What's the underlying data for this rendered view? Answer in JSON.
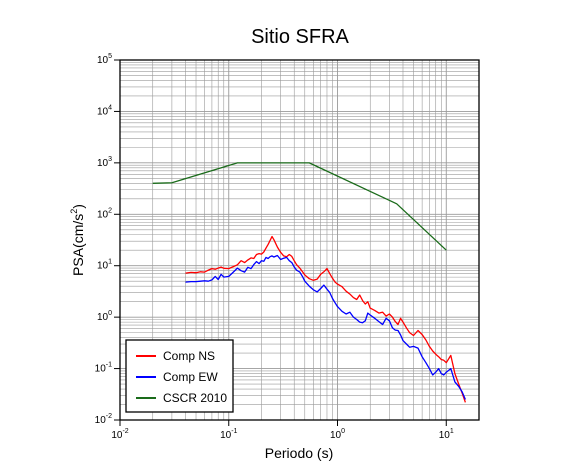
{
  "chart_data": {
    "type": "line",
    "title": "Sitio SFRA",
    "xlabel": "Periodo (s)",
    "ylabel": {
      "base": "PSA(cm/s",
      "sup": "2",
      "tail": ")"
    },
    "x_scale": "log",
    "y_scale": "log",
    "xlim": [
      0.01,
      20
    ],
    "ylim": [
      0.01,
      100000
    ],
    "grid": true,
    "legend_position": "bottom-left",
    "x_ticks": [
      {
        "base": "10",
        "exp": "-2",
        "value": 0.01
      },
      {
        "base": "10",
        "exp": "-1",
        "value": 0.1
      },
      {
        "base": "10",
        "exp": "0",
        "value": 1
      },
      {
        "base": "10",
        "exp": "1",
        "value": 10
      }
    ],
    "y_ticks": [
      {
        "base": "10",
        "exp": "-2",
        "value": 0.01
      },
      {
        "base": "10",
        "exp": "-1",
        "value": 0.1
      },
      {
        "base": "10",
        "exp": "0",
        "value": 1
      },
      {
        "base": "10",
        "exp": "1",
        "value": 10
      },
      {
        "base": "10",
        "exp": "2",
        "value": 100
      },
      {
        "base": "10",
        "exp": "3",
        "value": 1000
      },
      {
        "base": "10",
        "exp": "4",
        "value": 10000
      },
      {
        "base": "10",
        "exp": "5",
        "value": 100000
      }
    ],
    "series": [
      {
        "name": "Comp NS",
        "color": "#ff0000",
        "x": [
          0.04,
          0.045,
          0.05,
          0.055,
          0.06,
          0.065,
          0.07,
          0.075,
          0.08,
          0.085,
          0.09,
          0.1,
          0.11,
          0.12,
          0.13,
          0.14,
          0.15,
          0.16,
          0.17,
          0.18,
          0.19,
          0.2,
          0.21,
          0.22,
          0.23,
          0.24,
          0.25,
          0.26,
          0.28,
          0.3,
          0.32,
          0.34,
          0.36,
          0.38,
          0.4,
          0.42,
          0.45,
          0.48,
          0.5,
          0.55,
          0.6,
          0.65,
          0.7,
          0.75,
          0.8,
          0.85,
          0.9,
          0.95,
          1.0,
          1.1,
          1.2,
          1.3,
          1.4,
          1.5,
          1.6,
          1.7,
          1.8,
          1.9,
          2.0,
          2.2,
          2.4,
          2.6,
          2.8,
          3.0,
          3.2,
          3.4,
          3.6,
          3.8,
          4.0,
          4.3,
          4.6,
          5.0,
          5.5,
          6.0,
          6.5,
          7.0,
          7.5,
          8.0,
          8.5,
          9.0,
          9.5,
          10,
          11,
          12,
          13,
          14,
          15
        ],
        "y": [
          7.2,
          7.4,
          7.3,
          7.6,
          7.5,
          8.2,
          8.8,
          8.5,
          9.0,
          9.4,
          8.9,
          8.8,
          9.6,
          10.4,
          12.5,
          11.5,
          13.0,
          14.2,
          13.8,
          16.5,
          17.2,
          16.8,
          18.5,
          22,
          26,
          31,
          37,
          32,
          23,
          18.2,
          15.5,
          15.0,
          16.5,
          15.2,
          12.5,
          10.5,
          9.0,
          7.5,
          6.6,
          5.6,
          5.2,
          5.5,
          6.8,
          7.6,
          8.8,
          7.0,
          5.7,
          4.8,
          4.4,
          3.9,
          3.2,
          2.8,
          2.4,
          2.2,
          2.7,
          2.1,
          1.8,
          2.0,
          1.5,
          1.35,
          1.2,
          1.25,
          1.05,
          1.15,
          1.0,
          0.82,
          0.72,
          0.95,
          0.8,
          0.62,
          0.5,
          0.44,
          0.55,
          0.46,
          0.36,
          0.27,
          0.22,
          0.19,
          0.17,
          0.15,
          0.145,
          0.13,
          0.18,
          0.08,
          0.05,
          0.033,
          0.022
        ]
      },
      {
        "name": "Comp EW",
        "color": "#0000ff",
        "x": [
          0.04,
          0.045,
          0.05,
          0.055,
          0.06,
          0.065,
          0.07,
          0.075,
          0.08,
          0.085,
          0.09,
          0.1,
          0.11,
          0.12,
          0.13,
          0.14,
          0.15,
          0.16,
          0.17,
          0.18,
          0.19,
          0.2,
          0.21,
          0.22,
          0.23,
          0.24,
          0.25,
          0.26,
          0.28,
          0.3,
          0.32,
          0.34,
          0.36,
          0.38,
          0.4,
          0.42,
          0.45,
          0.48,
          0.5,
          0.55,
          0.6,
          0.65,
          0.7,
          0.75,
          0.8,
          0.85,
          0.9,
          0.95,
          1.0,
          1.1,
          1.2,
          1.3,
          1.4,
          1.5,
          1.6,
          1.7,
          1.8,
          1.9,
          2.0,
          2.2,
          2.4,
          2.6,
          2.8,
          3.0,
          3.2,
          3.4,
          3.6,
          3.8,
          4.0,
          4.3,
          4.6,
          5.0,
          5.5,
          6.0,
          6.5,
          7.0,
          7.5,
          8.0,
          8.5,
          9.0,
          9.5,
          10,
          11,
          12,
          13,
          14,
          15
        ],
        "y": [
          4.8,
          4.9,
          4.9,
          5.0,
          5.1,
          5.0,
          5.3,
          6.2,
          5.4,
          6.8,
          6.0,
          6.2,
          7.5,
          9.0,
          8.0,
          7.5,
          9.3,
          8.8,
          10.5,
          12.0,
          11.0,
          12.5,
          12.2,
          14.5,
          13.8,
          15.0,
          15.5,
          14.8,
          15.8,
          13.2,
          14.0,
          14.5,
          12.5,
          11.5,
          9.5,
          8.2,
          7.5,
          6.0,
          5.0,
          4.0,
          3.4,
          3.1,
          3.6,
          4.2,
          3.5,
          3.0,
          2.3,
          1.9,
          1.6,
          1.3,
          1.15,
          1.25,
          1.0,
          0.9,
          0.8,
          0.78,
          0.85,
          1.2,
          1.1,
          0.95,
          0.82,
          0.72,
          0.95,
          0.85,
          0.62,
          0.56,
          0.55,
          0.45,
          0.35,
          0.3,
          0.26,
          0.27,
          0.25,
          0.17,
          0.13,
          0.1,
          0.075,
          0.085,
          0.1,
          0.08,
          0.075,
          0.085,
          0.1,
          0.055,
          0.045,
          0.035,
          0.025
        ]
      },
      {
        "name": "CSCR 2010",
        "color": "#1a6b1a",
        "x": [
          0.02,
          0.03,
          0.12,
          0.55,
          3.5,
          10
        ],
        "y": [
          400,
          410,
          1000,
          1000,
          160,
          20
        ]
      }
    ]
  }
}
